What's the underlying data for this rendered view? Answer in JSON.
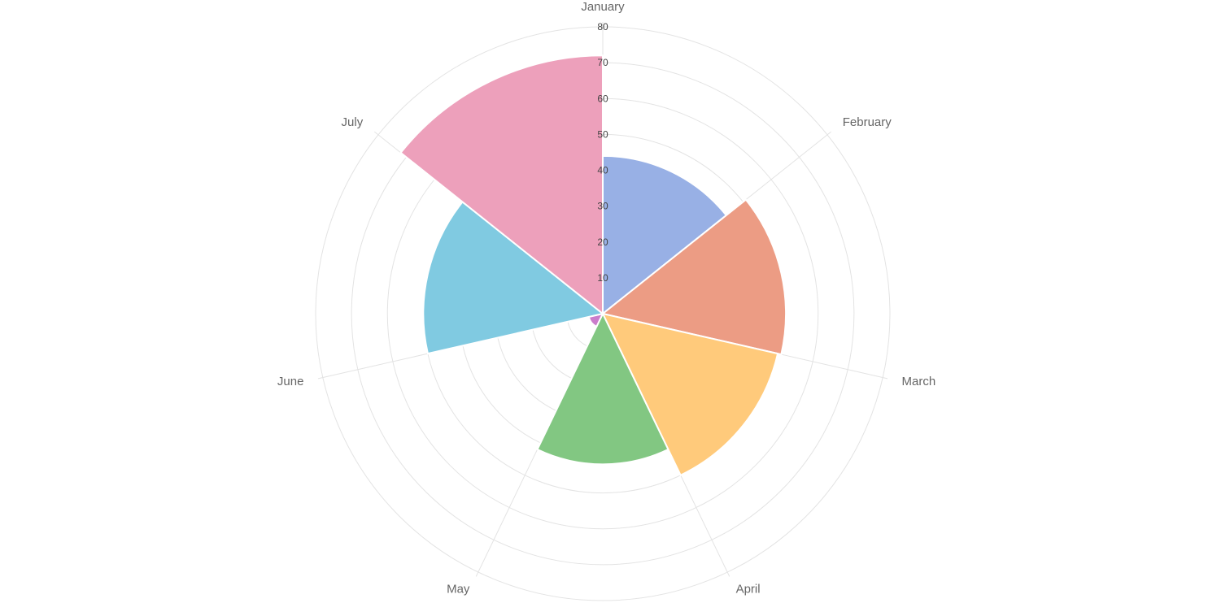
{
  "chart_data": {
    "type": "polarArea",
    "categories": [
      "January",
      "February",
      "March",
      "April",
      "May",
      "June",
      "July"
    ],
    "values": [
      44,
      51,
      50,
      42,
      4,
      50,
      72
    ],
    "colors": [
      "#98b0e5",
      "#ec9c84",
      "#ffca7b",
      "#82c782",
      "#cb7dcc",
      "#80cae1",
      "#eda0bb"
    ],
    "r_axis": {
      "min": 0,
      "max": 80,
      "ticks": [
        "10",
        "20",
        "30",
        "40",
        "50",
        "60",
        "70",
        "80"
      ]
    },
    "grid": true,
    "legend": "none"
  }
}
